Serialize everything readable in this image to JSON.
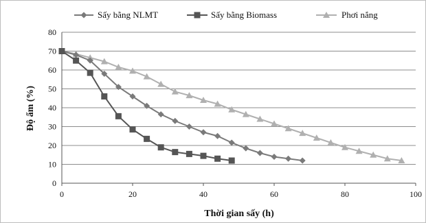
{
  "chart_data": {
    "type": "line",
    "title": "",
    "xlabel": "Thời gian sấy (h)",
    "ylabel": "Độ ẩm (%)",
    "xlim": [
      0,
      100
    ],
    "ylim": [
      0,
      80
    ],
    "xticks": [
      0,
      20,
      40,
      60,
      80,
      100
    ],
    "yticks": [
      0,
      10,
      20,
      30,
      40,
      50,
      60,
      70,
      80
    ],
    "grid": "horizontal",
    "legend_position": "top",
    "series": [
      {
        "name": "Sấy bằng NLMT",
        "marker": "diamond",
        "color": "#7a7a7a",
        "x": [
          0,
          4,
          8,
          12,
          16,
          20,
          24,
          28,
          32,
          36,
          40,
          44,
          48,
          52,
          56,
          60,
          64,
          68
        ],
        "y": [
          70,
          68,
          65,
          58,
          51,
          46,
          41,
          36.5,
          33,
          30,
          27,
          25,
          21.5,
          18.5,
          16,
          14,
          13,
          12
        ]
      },
      {
        "name": "Sấy bằng Biomass",
        "marker": "square",
        "color": "#555555",
        "x": [
          0,
          4,
          8,
          12,
          16,
          20,
          24,
          28,
          32,
          36,
          40,
          44,
          48
        ],
        "y": [
          70,
          65,
          58.5,
          46,
          35.5,
          28.5,
          23.5,
          19,
          16.5,
          15.5,
          14.5,
          13,
          12
        ]
      },
      {
        "name": "Phơi nắng",
        "marker": "triangle",
        "color": "#b0b0b0",
        "x": [
          0,
          4,
          8,
          12,
          16,
          20,
          24,
          28,
          32,
          36,
          40,
          44,
          48,
          52,
          56,
          60,
          64,
          68,
          72,
          76,
          80,
          84,
          88,
          92,
          96
        ],
        "y": [
          70,
          68.5,
          66.5,
          64.5,
          61.5,
          59.5,
          56.5,
          52.5,
          48.5,
          46.5,
          44,
          42,
          39,
          36.5,
          34,
          31.5,
          29,
          26.5,
          24,
          21.5,
          19,
          17,
          15,
          13,
          12
        ]
      }
    ]
  }
}
